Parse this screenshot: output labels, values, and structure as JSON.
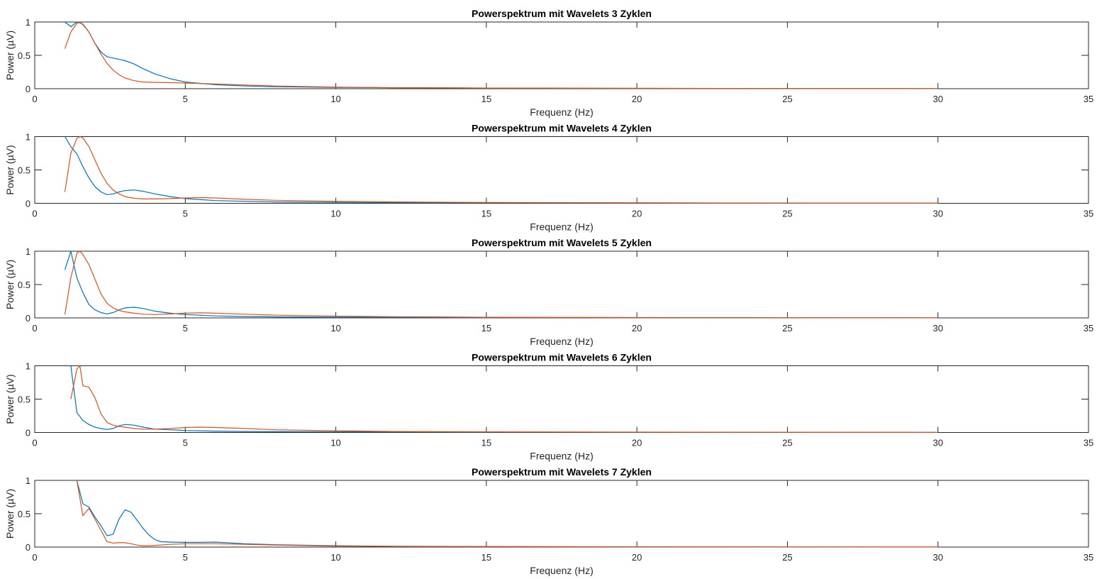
{
  "chart_data": [
    {
      "type": "line",
      "title": "Powerspektrum mit Wavelets 3 Zyklen",
      "xlabel": "Frequenz (Hz)",
      "ylabel": "Power (µV)",
      "xlim": [
        0,
        35
      ],
      "ylim": [
        0,
        1
      ],
      "xticks": [
        0,
        5,
        10,
        15,
        20,
        25,
        30,
        35
      ],
      "yticks": [
        0,
        0.5,
        1
      ],
      "ytick_labels": [
        "0",
        "0.5",
        "1"
      ],
      "series": [
        {
          "color": "#0072BD",
          "x": [
            1,
            1.2,
            1.4,
            1.6,
            1.8,
            2,
            2.2,
            2.4,
            2.6,
            2.8,
            3,
            3.3,
            3.6,
            4,
            4.5,
            5,
            6,
            7,
            8,
            10,
            12,
            15,
            20,
            25,
            30
          ],
          "y": [
            1.0,
            0.93,
            1.0,
            0.97,
            0.85,
            0.68,
            0.55,
            0.48,
            0.46,
            0.44,
            0.42,
            0.37,
            0.3,
            0.22,
            0.15,
            0.1,
            0.06,
            0.04,
            0.03,
            0.02,
            0.015,
            0.01,
            0.005,
            0.003,
            0.002
          ]
        },
        {
          "color": "#D95319",
          "x": [
            1,
            1.2,
            1.4,
            1.5,
            1.6,
            1.8,
            2,
            2.2,
            2.4,
            2.6,
            2.8,
            3,
            3.3,
            3.6,
            4,
            4.5,
            5,
            6,
            7,
            8,
            10,
            12,
            15,
            20,
            25,
            30
          ],
          "y": [
            0.6,
            0.85,
            0.98,
            1.0,
            0.96,
            0.85,
            0.68,
            0.52,
            0.38,
            0.28,
            0.21,
            0.16,
            0.12,
            0.1,
            0.095,
            0.09,
            0.085,
            0.07,
            0.055,
            0.04,
            0.025,
            0.015,
            0.01,
            0.005,
            0.003,
            0.002
          ]
        }
      ]
    },
    {
      "type": "line",
      "title": "Powerspektrum mit Wavelets 4 Zyklen",
      "xlabel": "Frequenz (Hz)",
      "ylabel": "Power (µV)",
      "xlim": [
        0,
        35
      ],
      "ylim": [
        0,
        1
      ],
      "xticks": [
        0,
        5,
        10,
        15,
        20,
        25,
        30,
        35
      ],
      "yticks": [
        0,
        0.5,
        1
      ],
      "ytick_labels": [
        "0",
        "0.5",
        "1"
      ],
      "series": [
        {
          "color": "#0072BD",
          "x": [
            1,
            1.2,
            1.4,
            1.6,
            1.8,
            2,
            2.2,
            2.4,
            2.6,
            2.8,
            3,
            3.3,
            3.6,
            4,
            4.5,
            5,
            6,
            7,
            8,
            10,
            12,
            15,
            20,
            25,
            30
          ],
          "y": [
            1.0,
            0.85,
            0.74,
            0.55,
            0.38,
            0.25,
            0.17,
            0.13,
            0.14,
            0.17,
            0.19,
            0.2,
            0.18,
            0.14,
            0.1,
            0.07,
            0.04,
            0.03,
            0.02,
            0.015,
            0.01,
            0.008,
            0.005,
            0.003,
            0.002
          ]
        },
        {
          "color": "#D95319",
          "x": [
            1,
            1.2,
            1.4,
            1.5,
            1.6,
            1.8,
            2,
            2.2,
            2.4,
            2.6,
            2.8,
            3,
            3.3,
            3.6,
            4,
            4.5,
            5,
            5.5,
            6,
            7,
            8,
            10,
            12,
            15,
            20,
            25,
            30
          ],
          "y": [
            0.17,
            0.75,
            0.97,
            1.0,
            0.98,
            0.85,
            0.65,
            0.45,
            0.3,
            0.2,
            0.14,
            0.1,
            0.075,
            0.065,
            0.065,
            0.07,
            0.08,
            0.085,
            0.08,
            0.06,
            0.045,
            0.03,
            0.02,
            0.012,
            0.006,
            0.003,
            0.002
          ]
        }
      ]
    },
    {
      "type": "line",
      "title": "Powerspektrum mit Wavelets 5 Zyklen",
      "xlabel": "Frequenz (Hz)",
      "ylabel": "Power (µV)",
      "xlim": [
        0,
        35
      ],
      "ylim": [
        0,
        1
      ],
      "xticks": [
        0,
        5,
        10,
        15,
        20,
        25,
        30,
        35
      ],
      "yticks": [
        0,
        0.5,
        1
      ],
      "ytick_labels": [
        "0",
        "0.5",
        "1"
      ],
      "series": [
        {
          "color": "#0072BD",
          "x": [
            1,
            1.2,
            1.4,
            1.6,
            1.8,
            2,
            2.2,
            2.4,
            2.6,
            2.8,
            3,
            3.3,
            3.6,
            4,
            4.5,
            5,
            6,
            7,
            8,
            10,
            12,
            15,
            20,
            25,
            30
          ],
          "y": [
            0.72,
            1.0,
            0.6,
            0.38,
            0.2,
            0.12,
            0.08,
            0.06,
            0.08,
            0.12,
            0.15,
            0.16,
            0.14,
            0.1,
            0.07,
            0.05,
            0.03,
            0.02,
            0.015,
            0.01,
            0.008,
            0.005,
            0.003,
            0.002,
            0.001
          ]
        },
        {
          "color": "#D95319",
          "x": [
            1,
            1.2,
            1.4,
            1.5,
            1.6,
            1.8,
            2,
            2.2,
            2.4,
            2.6,
            2.8,
            3,
            3.3,
            3.6,
            4,
            4.5,
            5,
            5.5,
            6,
            7,
            8,
            10,
            12,
            15,
            20,
            25,
            30
          ],
          "y": [
            0.05,
            0.6,
            0.97,
            1.0,
            0.95,
            0.8,
            0.58,
            0.36,
            0.22,
            0.15,
            0.11,
            0.09,
            0.07,
            0.055,
            0.05,
            0.06,
            0.07,
            0.075,
            0.07,
            0.055,
            0.04,
            0.025,
            0.018,
            0.01,
            0.005,
            0.003,
            0.002
          ]
        }
      ]
    },
    {
      "type": "line",
      "title": "Powerspektrum mit Wavelets 6 Zyklen",
      "xlabel": "Frequenz (Hz)",
      "ylabel": "Power (µV)",
      "xlim": [
        0,
        35
      ],
      "ylim": [
        0,
        1
      ],
      "xticks": [
        0,
        5,
        10,
        15,
        20,
        25,
        30,
        35
      ],
      "yticks": [
        0,
        0.5,
        1
      ],
      "ytick_labels": [
        "0",
        "0.5",
        "1"
      ],
      "series": [
        {
          "color": "#0072BD",
          "x": [
            1.2,
            1.4,
            1.6,
            1.8,
            2,
            2.2,
            2.4,
            2.6,
            2.8,
            3,
            3.3,
            3.6,
            4,
            4.5,
            5,
            6,
            7,
            8,
            10,
            12,
            15,
            20,
            25,
            30
          ],
          "y": [
            1.0,
            0.3,
            0.18,
            0.12,
            0.08,
            0.06,
            0.045,
            0.06,
            0.1,
            0.12,
            0.11,
            0.08,
            0.05,
            0.04,
            0.03,
            0.02,
            0.015,
            0.012,
            0.01,
            0.008,
            0.005,
            0.003,
            0.002,
            0.001
          ]
        },
        {
          "color": "#D95319",
          "x": [
            1.2,
            1.4,
            1.5,
            1.6,
            1.8,
            2,
            2.2,
            2.4,
            2.6,
            2.8,
            3,
            3.3,
            3.6,
            4,
            4.5,
            5,
            5.5,
            6,
            7,
            8,
            10,
            12,
            15,
            20,
            25,
            30
          ],
          "y": [
            0.5,
            0.95,
            1.0,
            0.7,
            0.68,
            0.52,
            0.28,
            0.15,
            0.11,
            0.09,
            0.08,
            0.06,
            0.05,
            0.05,
            0.06,
            0.075,
            0.08,
            0.075,
            0.06,
            0.04,
            0.025,
            0.015,
            0.01,
            0.005,
            0.003,
            0.002
          ]
        }
      ]
    },
    {
      "type": "line",
      "title": "Powerspektrum mit Wavelets 7 Zyklen",
      "xlabel": "Frequenz (Hz)",
      "ylabel": "Power (µV)",
      "xlim": [
        0,
        35
      ],
      "ylim": [
        0,
        1
      ],
      "xticks": [
        0,
        5,
        10,
        15,
        20,
        25,
        30,
        35
      ],
      "yticks": [
        0,
        0.5,
        1
      ],
      "ytick_labels": [
        "0",
        "0.5",
        "1"
      ],
      "series": [
        {
          "color": "#0072BD",
          "x": [
            1.4,
            1.6,
            1.8,
            2,
            2.2,
            2.4,
            2.6,
            2.8,
            3,
            3.2,
            3.4,
            3.6,
            3.8,
            4,
            4.2,
            4.5,
            5,
            5.5,
            6,
            7,
            8,
            10,
            12,
            15,
            20,
            25,
            30
          ],
          "y": [
            1.0,
            0.65,
            0.6,
            0.45,
            0.32,
            0.17,
            0.19,
            0.42,
            0.56,
            0.52,
            0.4,
            0.28,
            0.18,
            0.11,
            0.08,
            0.075,
            0.07,
            0.07,
            0.075,
            0.05,
            0.035,
            0.02,
            0.012,
            0.008,
            0.004,
            0.002,
            0.001
          ]
        },
        {
          "color": "#D95319",
          "x": [
            1.4,
            1.6,
            1.8,
            2,
            2.2,
            2.4,
            2.6,
            2.8,
            3,
            3.2,
            3.4,
            3.6,
            3.8,
            4,
            4.5,
            5,
            6,
            7,
            8,
            10,
            12,
            15,
            20,
            25,
            30
          ],
          "y": [
            1.0,
            0.47,
            0.58,
            0.42,
            0.25,
            0.08,
            0.06,
            0.065,
            0.065,
            0.05,
            0.03,
            0.02,
            0.02,
            0.025,
            0.04,
            0.05,
            0.05,
            0.04,
            0.03,
            0.015,
            0.01,
            0.006,
            0.003,
            0.002,
            0.001
          ]
        }
      ]
    }
  ]
}
